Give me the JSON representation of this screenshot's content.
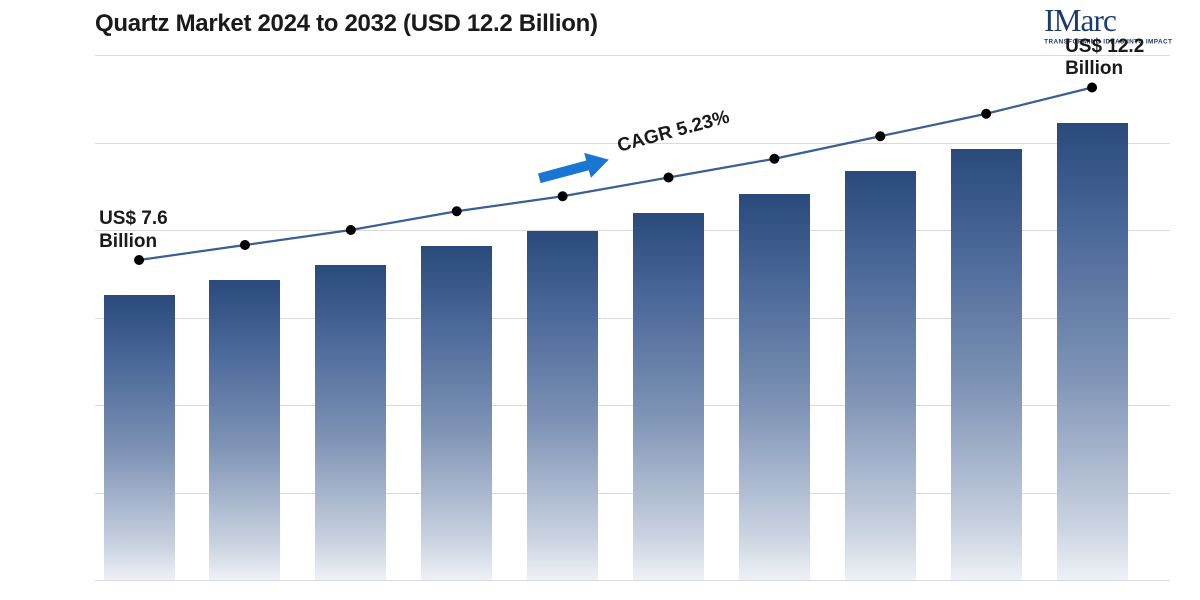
{
  "title": "Quartz Market 2024 to 2032 (USD 12.2 Billion)",
  "title_fontsize": 24,
  "logo": {
    "main": "IMarc",
    "sub": "TRANSFORMING IDEAS INTO IMPACT"
  },
  "chart": {
    "type": "bar+line",
    "background_color": "#ffffff",
    "grid_color": "#d9d9d9",
    "grid_count": 6,
    "bar_gradient_top": "#2a4a7c",
    "bar_gradient_bottom": "#eef1f6",
    "line_color": "#3b5f93",
    "line_width": 2.2,
    "marker_color": "#000000",
    "marker_radius": 5,
    "arrow_color": "#1976d2",
    "values": [
      7.6,
      8.0,
      8.4,
      8.9,
      9.3,
      9.8,
      10.3,
      10.9,
      11.5,
      12.2
    ],
    "ylim": [
      0,
      14
    ],
    "bar_width_pct": 6.6,
    "bar_gap_pct": 3.25,
    "bar_left_offset_pct": 0.8,
    "line_y_offset": -35,
    "start_label": {
      "line1": "US$ 7.6",
      "line2": "Billion",
      "fontsize": 19
    },
    "end_label": {
      "line1": "US$ 12.2",
      "line2": "Billion",
      "fontsize": 19
    },
    "cagr_label": {
      "text": "CAGR 5.23%",
      "fontsize": 19
    }
  }
}
